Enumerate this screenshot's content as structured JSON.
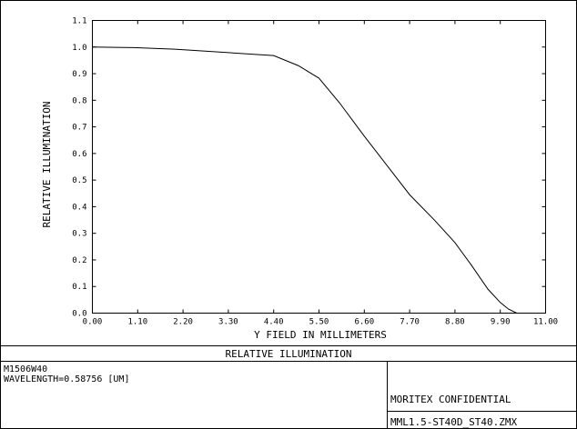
{
  "panel": {
    "title": "RELATIVE ILLUMINATION",
    "info_line1": "M1506W40",
    "info_line2": "WAVELENGTH=0.58756 [UM]",
    "confidential": "MORITEX CONFIDENTIAL",
    "filename": "MML1.5-ST40D_ST40.ZMX"
  },
  "chart_data": {
    "type": "line",
    "title": "RELATIVE ILLUMINATION",
    "xlabel": "Y FIELD IN MILLIMETERS",
    "ylabel": "RELATIVE ILLUMINATION",
    "xlim": [
      0,
      11.0
    ],
    "ylim": [
      0,
      1.1
    ],
    "xticks": [
      "0.00",
      "1.10",
      "2.20",
      "3.30",
      "4.40",
      "5.50",
      "6.60",
      "7.70",
      "8.80",
      "9.90",
      "11.00"
    ],
    "yticks": [
      "0.0",
      "0.1",
      "0.2",
      "0.3",
      "0.4",
      "0.5",
      "0.6",
      "0.7",
      "0.8",
      "0.9",
      "1.0",
      "1.1"
    ],
    "grid": false,
    "series": [
      {
        "x": [
          0.0,
          1.0,
          2.0,
          3.0,
          4.0,
          4.4,
          5.0,
          5.5,
          6.0,
          6.6,
          7.2,
          7.7,
          8.3,
          8.8,
          9.2,
          9.6,
          9.9,
          10.1,
          10.3
        ],
        "y": [
          1.0,
          0.998,
          0.992,
          0.982,
          0.972,
          0.968,
          0.93,
          0.883,
          0.79,
          0.665,
          0.545,
          0.445,
          0.35,
          0.265,
          0.18,
          0.09,
          0.04,
          0.015,
          0.0
        ],
        "color": "#000000"
      }
    ]
  }
}
